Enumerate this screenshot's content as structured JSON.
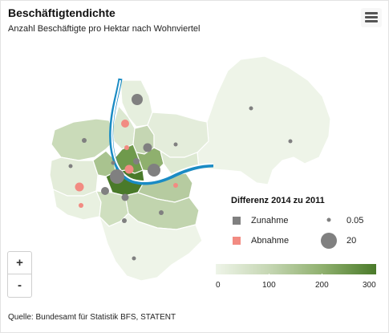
{
  "header": {
    "title": "Beschäftigtendichte",
    "subtitle": "Anzahl Beschäftigte pro Hektar nach Wohnviertel"
  },
  "menu": {
    "icon": "hamburger-menu-icon"
  },
  "zoom": {
    "in_label": "+",
    "out_label": "-"
  },
  "legend": {
    "title": "Differenz 2014 zu 2011",
    "increase_label": "Zunahme",
    "decrease_label": "Abnahme",
    "size_small_label": "0.05",
    "size_large_label": "20",
    "increase_color": "#808080",
    "decrease_color": "#f28b82"
  },
  "color_scale": {
    "ticks": [
      "0",
      "100",
      "200",
      "300"
    ],
    "min": 0,
    "max": 300,
    "colors": [
      "#eef4e8",
      "#c5d6b3",
      "#8fb06e",
      "#4a7a2a"
    ]
  },
  "map": {
    "river_color": "#1a8bc4"
  },
  "source": "Quelle: Bundesamt für Statistik BFS, STATENT"
}
